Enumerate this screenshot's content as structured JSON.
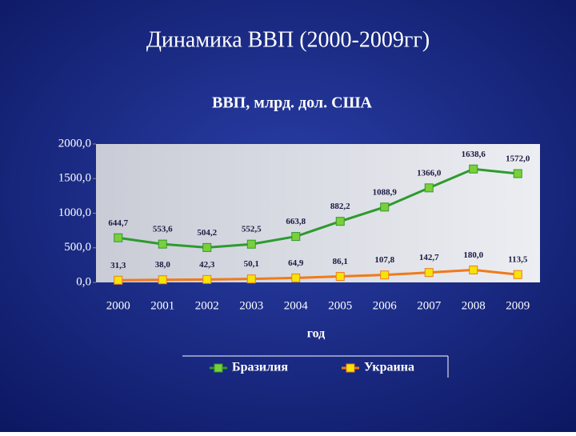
{
  "slide_title": "Динамика ВВП (2000-2009гг)",
  "chart_data": {
    "type": "line",
    "title": "ВВП, млрд. дол. США",
    "x_label": "год",
    "categories": [
      "2000",
      "2001",
      "2002",
      "2003",
      "2004",
      "2005",
      "2006",
      "2007",
      "2008",
      "2009"
    ],
    "series": [
      {
        "name": "Бразилия",
        "color": "#2e9a2e",
        "marker_color": "#7ccf3a",
        "values": [
          644.7,
          553.6,
          504.2,
          552.5,
          663.8,
          882.2,
          1088.9,
          1366.0,
          1638.6,
          1572.0
        ],
        "value_labels": [
          "644,7",
          "553,6",
          "504,2",
          "552,5",
          "663,8",
          "882,2",
          "1088,9",
          "1366,0",
          "1638,6",
          "1572,0"
        ]
      },
      {
        "name": "Украина",
        "color": "#f07a1a",
        "marker_color": "#f4e40a",
        "values": [
          31.3,
          38.0,
          42.3,
          50.1,
          64.9,
          86.1,
          107.8,
          142.7,
          180.0,
          113.5
        ],
        "value_labels": [
          "31,3",
          "38,0",
          "42,3",
          "50,1",
          "64,9",
          "86,1",
          "107,8",
          "142,7",
          "180,0",
          "113,5"
        ]
      }
    ],
    "ylim": [
      0,
      2000
    ],
    "yticks": [
      {
        "value": 0,
        "label": "0,0"
      },
      {
        "value": 500,
        "label": "500,0"
      },
      {
        "value": 1000,
        "label": "1000,0"
      },
      {
        "value": 1500,
        "label": "1500,0"
      },
      {
        "value": 2000,
        "label": "2000,0"
      }
    ]
  }
}
